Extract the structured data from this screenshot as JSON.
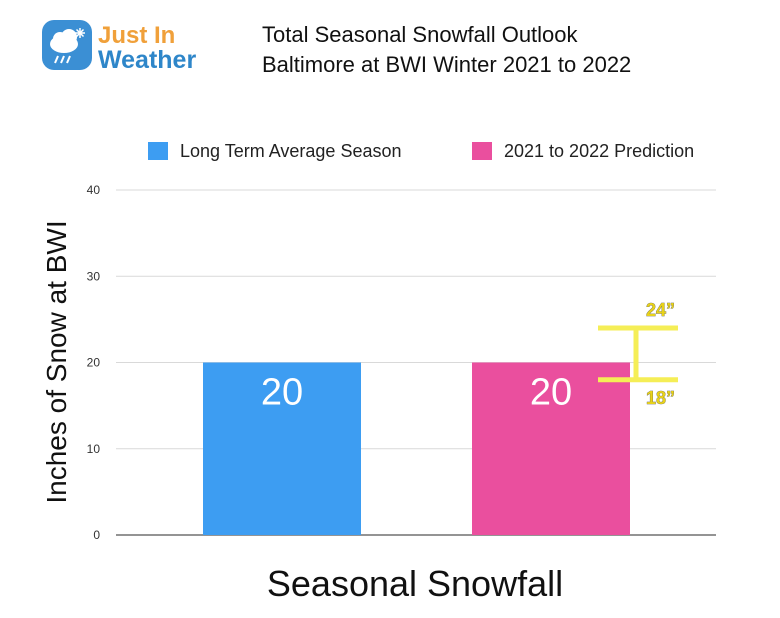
{
  "logo": {
    "line1": "Just In",
    "line2": "Weather",
    "icon": "cloud-snow-rain-icon"
  },
  "title": {
    "line1": "Total Seasonal Snowfall Outlook",
    "line2": "Baltimore at BWI Winter 2021 to 2022"
  },
  "chart_data": {
    "type": "bar",
    "categories": [
      "Long Term Average Season",
      "2021 to 2022 Prediction"
    ],
    "values": [
      20,
      20
    ],
    "colors": [
      "#3d9df2",
      "#ea4f9e"
    ],
    "data_labels": [
      "20",
      "20"
    ],
    "title": "Total Seasonal Snowfall Outlook Baltimore at BWI Winter 2021 to 2022",
    "xlabel": "Seasonal Snowfall",
    "ylabel": "Inches of Snow at BWI",
    "ylim": [
      0,
      40
    ],
    "yticks": [
      0,
      10,
      20,
      30,
      40
    ],
    "grid": true,
    "legend": {
      "position": "top",
      "entries": [
        "Long Term Average Season",
        "2021 to 2022 Prediction"
      ]
    },
    "range_annotation": {
      "series": "2021 to 2022 Prediction",
      "low": 18,
      "high": 24,
      "low_label": "18”",
      "high_label": "24”",
      "color": "#f5ee56"
    }
  }
}
